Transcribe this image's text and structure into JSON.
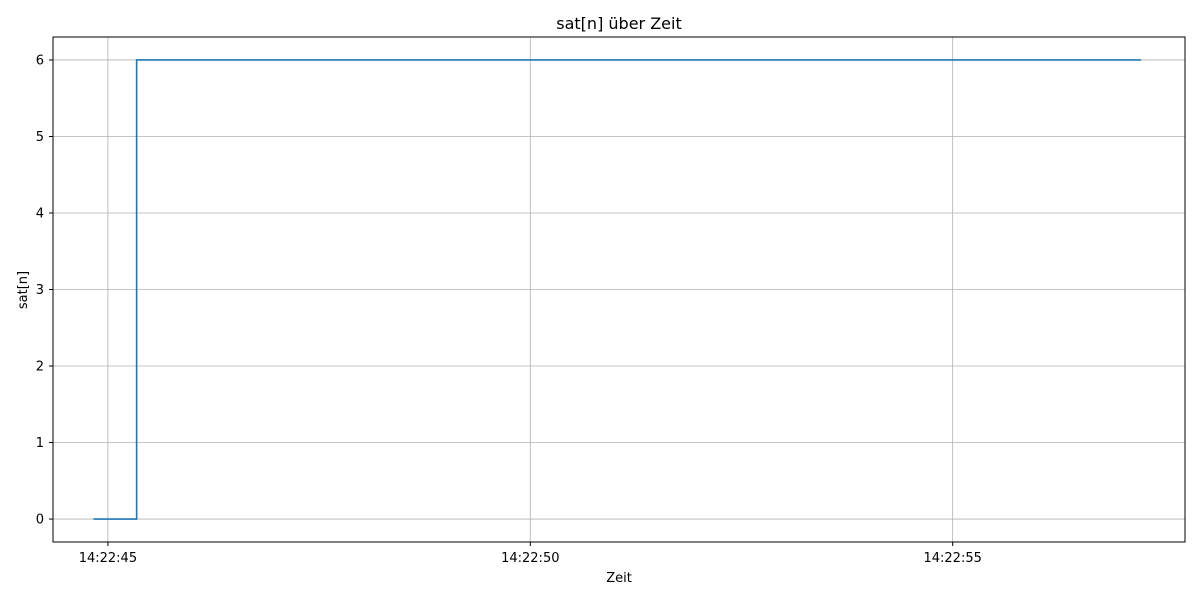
{
  "chart_data": {
    "type": "line",
    "title": "sat[n] über Zeit",
    "xlabel": "Zeit",
    "ylabel": "sat[n]",
    "x_tick_labels": [
      "14:22:45",
      "14:22:50",
      "14:22:55"
    ],
    "x_ticks": [
      45,
      50,
      55
    ],
    "y_ticks": [
      0,
      1,
      2,
      3,
      4,
      5,
      6
    ],
    "y_tick_labels": [
      "0",
      "1",
      "2",
      "3",
      "4",
      "5",
      "6"
    ],
    "xlim": [
      "14:22:44.35",
      "14:22:57.75"
    ],
    "ylim": [
      -0.3,
      6.3
    ],
    "grid": true,
    "step": "post",
    "series": [
      {
        "color": "#1f77b4",
        "x": [
          "14:22:44.83",
          "14:22:45.33",
          "14:22:45.34",
          "14:22:57.23"
        ],
        "y": [
          0,
          0,
          6,
          6
        ]
      }
    ]
  }
}
